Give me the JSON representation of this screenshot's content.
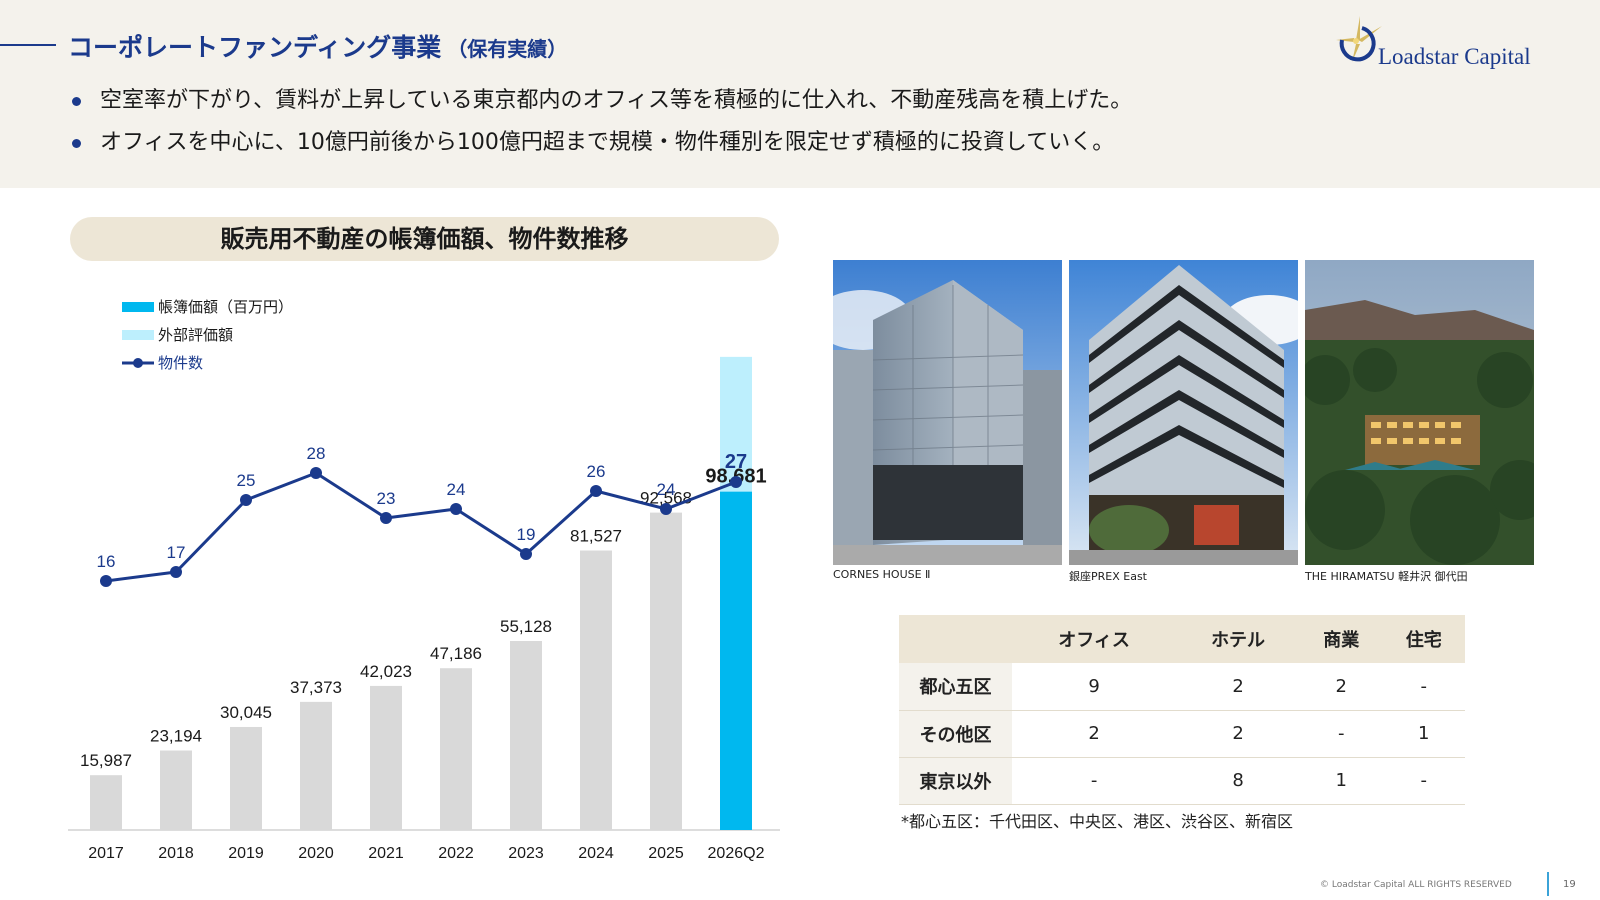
{
  "header": {
    "title": "コーポレートファンディング事業",
    "title_sub": "（保有実績）",
    "bullets": [
      "空室率が下がり、賃料が上昇している東京都内のオフィス等を積極的に仕入れ、不動産残高を積上げた。",
      "オフィスを中心に、10億円前後から100億円超まで規模・物件種別を限定せず積極的に投資していく。"
    ]
  },
  "logo": {
    "text": "Loadstar Capital"
  },
  "chart_title": "販売用不動産の帳簿価額、物件数推移",
  "chart_data": {
    "type": "bar",
    "categories": [
      "2017",
      "2018",
      "2019",
      "2020",
      "2021",
      "2022",
      "2023",
      "2024",
      "2025",
      "2026Q2"
    ],
    "series": [
      {
        "name": "帳簿価額（百万円）",
        "type": "bar",
        "values": [
          15987,
          23194,
          30045,
          37373,
          42023,
          47186,
          55128,
          81527,
          92568,
          98681
        ],
        "labels": [
          "15,987",
          "23,194",
          "30,045",
          "37,373",
          "42,023",
          "47,186",
          "55,128",
          "81,527",
          "92,568",
          "98,681"
        ]
      },
      {
        "name": "外部評価額",
        "type": "bar-stacked-top",
        "values": [
          null,
          null,
          null,
          null,
          null,
          null,
          null,
          null,
          null,
          138000
        ]
      },
      {
        "name": "物件数",
        "type": "line",
        "values": [
          16,
          17,
          25,
          28,
          23,
          24,
          19,
          26,
          24,
          27
        ]
      }
    ],
    "bar_ylim": [
      0,
      140000
    ],
    "line_ylim": [
      0,
      40
    ],
    "colors": {
      "bar_past": "#d9d9d9",
      "bar_current": "#00b8ef",
      "bar_external": "#bdeffd",
      "line": "#1b3a8c"
    },
    "legend_position": "top-left",
    "grid": false
  },
  "photos": [
    {
      "caption": "CORNES HOUSE Ⅱ"
    },
    {
      "caption": "銀座PREX East"
    },
    {
      "caption": "THE HIRAMATSU 軽井沢 御代田"
    }
  ],
  "table": {
    "columns": [
      "オフィス",
      "ホテル",
      "商業",
      "住宅"
    ],
    "rows": [
      {
        "label": "都心五区",
        "cells": [
          "9",
          "2",
          "2",
          "-"
        ]
      },
      {
        "label": "その他区",
        "cells": [
          "2",
          "2",
          "-",
          "1"
        ]
      },
      {
        "label": "東京以外",
        "cells": [
          "-",
          "8",
          "1",
          "-"
        ]
      }
    ]
  },
  "footnote": "*都心五区：千代田区、中央区、港区、渋谷区、新宿区",
  "footer": {
    "copyright": "© Loadstar Capital ALL RIGHTS RESERVED",
    "page": "19"
  }
}
